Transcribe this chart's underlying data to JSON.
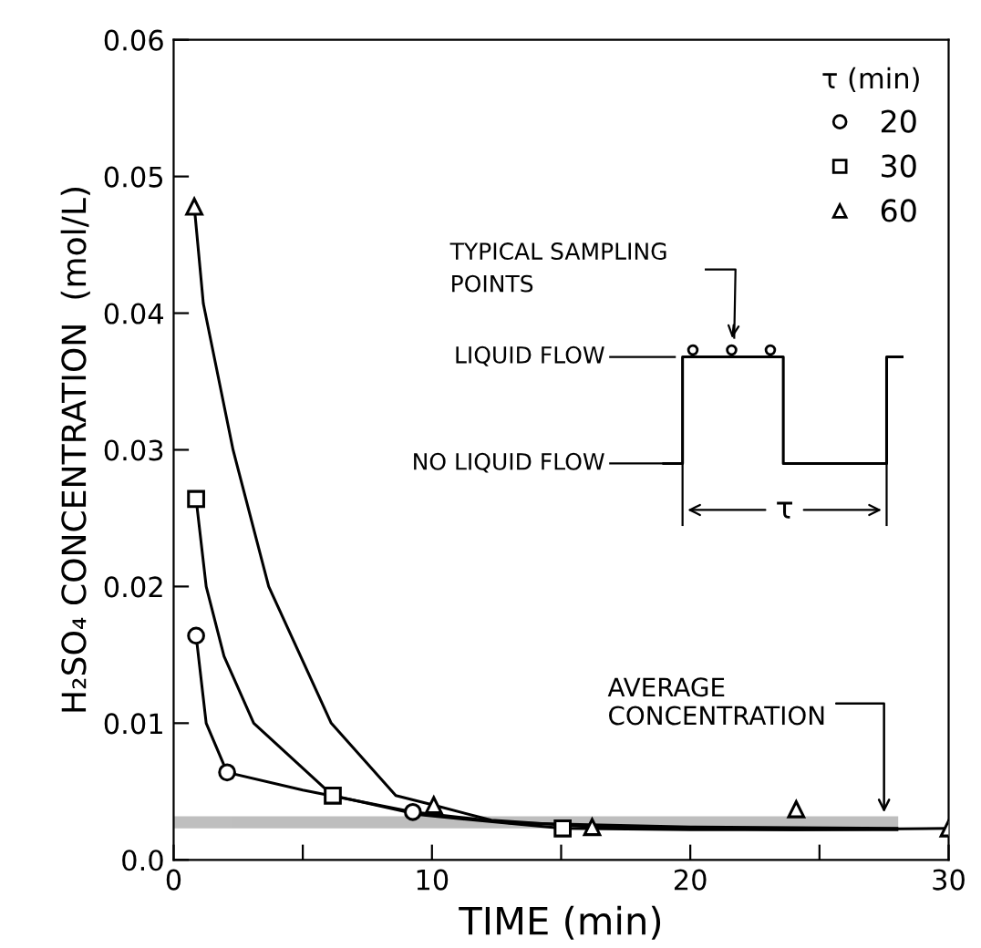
{
  "chart_data": {
    "type": "scatter",
    "xlabel": "TIME (min)",
    "ylabel": "H₂SO₄ CONCENTRATION  (mol/L)",
    "legend_title": "τ (min)",
    "legend": "top right",
    "grid": false,
    "xlim": [
      0,
      30
    ],
    "xticks": [
      0,
      {
        "value": 5,
        "label": null
      },
      10,
      {
        "value": 15,
        "label": null
      },
      20,
      {
        "value": 25,
        "label": null
      },
      30
    ],
    "ylim": [
      0,
      0.06
    ],
    "yticks": [
      {
        "value": 0,
        "label": "0.0"
      },
      0.01,
      0.02,
      0.03,
      0.04,
      0.05,
      0.06
    ],
    "series": [
      {
        "name": "20",
        "marker": "circle",
        "color": "#000000",
        "x": [
          0.87,
          2.07,
          9.26
        ],
        "values": [
          0.0164,
          0.0064,
          0.0035
        ]
      },
      {
        "name": "30",
        "marker": "square",
        "color": "#000000",
        "x": [
          0.87,
          6.16,
          15.06
        ],
        "values": [
          0.0264,
          0.0047,
          0.0023
        ]
      },
      {
        "name": "60",
        "marker": "triangle",
        "color": "#000000",
        "x": [
          0.8,
          10.07,
          16.2,
          24.1,
          30
        ],
        "values": [
          0.0478,
          0.004,
          0.0024,
          0.0037,
          0.0023
        ]
      },
      {
        "type": "line",
        "marker": "none",
        "color": "#000000",
        "x": [
          0.87,
          1.26,
          2.07,
          5.0,
          9.26,
          13,
          20,
          28
        ],
        "values": [
          0.0164,
          0.01,
          0.0064,
          0.0051,
          0.0035,
          0.0027,
          0.0024,
          0.0023
        ]
      },
      {
        "type": "line",
        "marker": "none",
        "color": "#000000",
        "x": [
          0.87,
          1.26,
          1.95,
          3.1,
          6.16,
          9.5,
          15.06,
          20,
          28
        ],
        "values": [
          0.0264,
          0.02,
          0.0149,
          0.01,
          0.0047,
          0.0033,
          0.0023,
          0.0022,
          0.0022
        ]
      },
      {
        "type": "line",
        "marker": "none",
        "color": "#000000",
        "x": [
          0.8,
          1.15,
          2.3,
          3.68,
          6.1,
          8.6,
          10.07,
          12.3,
          16.2,
          24,
          30
        ],
        "values": [
          0.0478,
          0.0407,
          0.03,
          0.02,
          0.01,
          0.0047,
          0.004,
          0.0029,
          0.0024,
          0.0022,
          0.0023
        ]
      }
    ],
    "bands": [
      {
        "axis": "y",
        "from": 0.0024,
        "to": 0.0031,
        "label": "AVERAGE\nCONCENTRATION",
        "color": "#000000"
      }
    ],
    "annotations": [
      "TYPICAL SAMPLING\nPOINTS",
      "LIQUID FLOW",
      "NO LIQUID FLOW",
      "τ"
    ]
  }
}
